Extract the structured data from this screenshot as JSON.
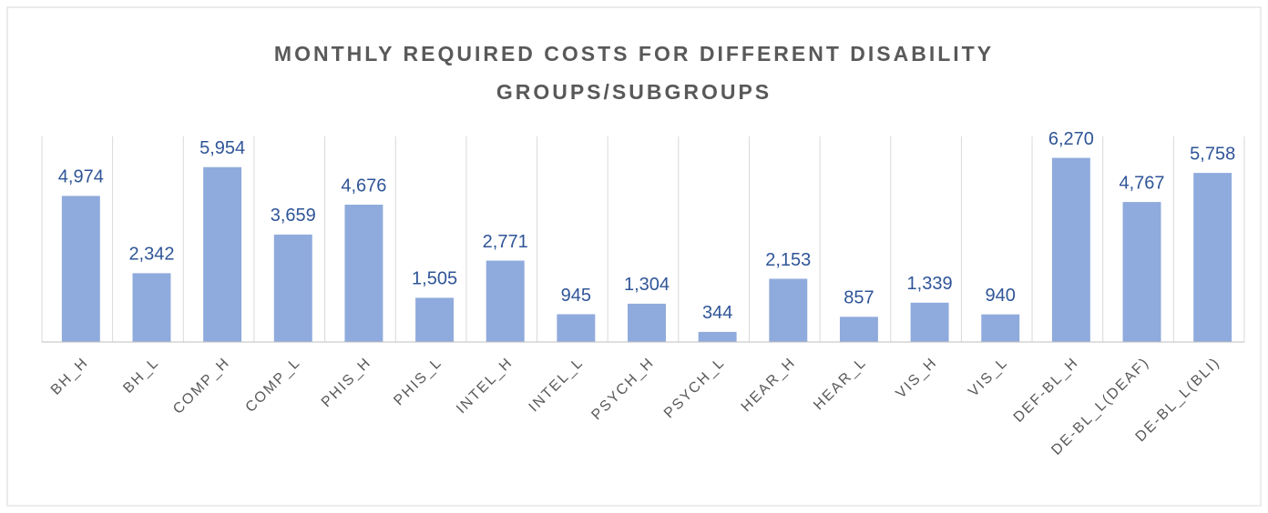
{
  "chart_data": {
    "type": "bar",
    "title": "MONTHLY REQUIRED COSTS FOR DIFFERENT DISABILITY GROUPS/SUBGROUPS",
    "categories": [
      "BH_H",
      "BH_L",
      "COMP_H",
      "COMP_L",
      "PHIS_H",
      "PHIS_L",
      "INTEL_H",
      "INTEL_L",
      "PSYCH_H",
      "PSYCH_L",
      "HEAR_H",
      "HEAR_L",
      "VIS_H",
      "VIS_L",
      "DEF-BL_H",
      "DE-BL_L(DEAF)",
      "DE-BL_L(BLI)"
    ],
    "values": [
      4974,
      2342,
      5954,
      3659,
      4676,
      1505,
      2771,
      945,
      1304,
      344,
      2153,
      857,
      1339,
      940,
      6270,
      4767,
      5758
    ],
    "value_labels": [
      "4,974",
      "2,342",
      "5,954",
      "3,659",
      "4,676",
      "1,505",
      "2,771",
      "945",
      "1,304",
      "344",
      "2,153",
      "857",
      "1,339",
      "940",
      "6,270",
      "4,767",
      "5,758"
    ],
    "color": "#8faadc",
    "ylim": [
      0,
      7000
    ],
    "grid": true
  }
}
